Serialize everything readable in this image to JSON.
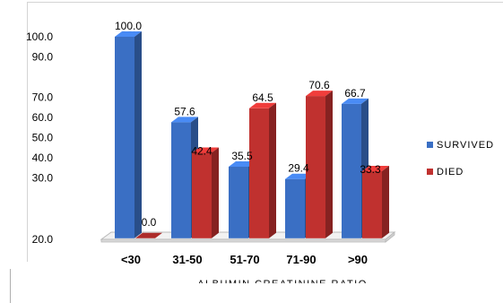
{
  "chart_data": {
    "type": "bar",
    "categories": [
      "<30",
      "31-50",
      "51-70",
      "71-90",
      ">90"
    ],
    "series": [
      {
        "name": "SURVIVED",
        "values": [
          100.0,
          57.6,
          35.5,
          29.4,
          66.7
        ],
        "labels": [
          "100.0",
          "57.6",
          "35.5",
          "29.4",
          "66.7"
        ],
        "color": "#3a6fc4"
      },
      {
        "name": "DIED",
        "values": [
          0.0,
          42.4,
          64.5,
          70.6,
          33.3
        ],
        "labels": [
          "0.0",
          "42.4",
          "64.5",
          "70.6",
          "33.3"
        ],
        "color": "#c0312f"
      }
    ],
    "yticks": [
      "100.0",
      "90.0",
      "70.0",
      "60.0",
      "50.0",
      "40.0",
      "30.0",
      "20.0"
    ],
    "xlabel": "ALBUMIN CREATININE RATIO",
    "ylabel": "",
    "ylim": [
      0,
      100
    ],
    "style": "3d-bar",
    "legend_position": "right",
    "grid": false
  }
}
